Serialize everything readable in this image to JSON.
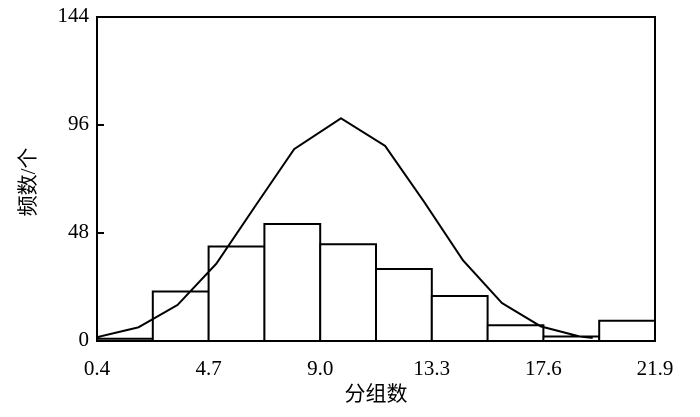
{
  "chart_data": {
    "type": "histogram",
    "x_label": "分组数",
    "y_label": "频数/个",
    "bins": [
      0.4,
      2.55,
      4.7,
      6.85,
      9.0,
      11.15,
      13.3,
      15.45,
      17.6,
      19.75,
      21.9
    ],
    "values": [
      1,
      22,
      42,
      52,
      43,
      32,
      20,
      7,
      2,
      9
    ],
    "curve": {
      "x": [
        0.4,
        2.0,
        3.5,
        5.0,
        6.5,
        8.0,
        9.8,
        11.5,
        13.0,
        14.5,
        16.0,
        17.5,
        19.0,
        19.5
      ],
      "values": [
        1.7,
        6.1,
        16.0,
        34.4,
        60.0,
        85.3,
        99,
        86.7,
        61.9,
        35.9,
        16.9,
        6.5,
        2.0,
        1.4
      ]
    },
    "xlim": [
      0.4,
      21.9
    ],
    "xticks": [
      0.4,
      4.7,
      {
        "value": 9.0,
        "label": "9.0"
      },
      13.3,
      17.6,
      21.9
    ],
    "ylim": [
      0,
      144
    ],
    "yticks": [
      0,
      48,
      96,
      144
    ],
    "color": "#ffffff",
    "line_color": "#000000"
  }
}
